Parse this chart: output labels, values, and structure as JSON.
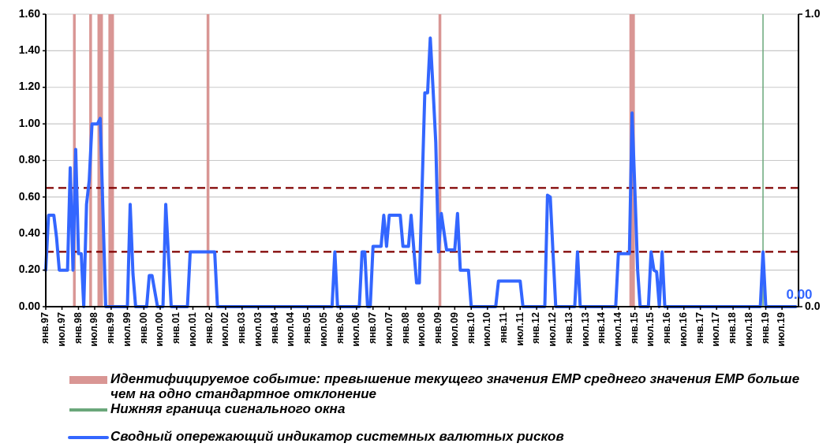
{
  "chart_data": {
    "type": "line",
    "xlim": [
      "1997-01",
      "2020-01"
    ],
    "xticks": [
      {
        "value": "1997-01",
        "label": "янв.97"
      },
      {
        "value": "1997-07",
        "label": "июл.97"
      },
      {
        "value": "1998-01",
        "label": "янв.98"
      },
      {
        "value": "1998-07",
        "label": "июл.98"
      },
      {
        "value": "1999-01",
        "label": "янв.99"
      },
      {
        "value": "1999-07",
        "label": "июл.99"
      },
      {
        "value": "2000-01",
        "label": "янв.00"
      },
      {
        "value": "2000-07",
        "label": "июл.00"
      },
      {
        "value": "2001-01",
        "label": "янв.01"
      },
      {
        "value": "2001-07",
        "label": "июл.01"
      },
      {
        "value": "2002-01",
        "label": "янв.02"
      },
      {
        "value": "2002-07",
        "label": "июл.02"
      },
      {
        "value": "2003-01",
        "label": "янв.03"
      },
      {
        "value": "2003-07",
        "label": "июл.03"
      },
      {
        "value": "2004-01",
        "label": "янв.04"
      },
      {
        "value": "2004-07",
        "label": "июл.04"
      },
      {
        "value": "2005-01",
        "label": "янв.05"
      },
      {
        "value": "2005-07",
        "label": "июл.05"
      },
      {
        "value": "2006-01",
        "label": "янв.06"
      },
      {
        "value": "2006-07",
        "label": "июл.06"
      },
      {
        "value": "2007-01",
        "label": "янв.07"
      },
      {
        "value": "2007-07",
        "label": "июл.07"
      },
      {
        "value": "2008-01",
        "label": "янв.08"
      },
      {
        "value": "2008-07",
        "label": "июл.08"
      },
      {
        "value": "2009-01",
        "label": "янв.09"
      },
      {
        "value": "2009-07",
        "label": "июл.09"
      },
      {
        "value": "2010-01",
        "label": "янв.10"
      },
      {
        "value": "2010-07",
        "label": "июл.10"
      },
      {
        "value": "2011-01",
        "label": "янв.11"
      },
      {
        "value": "2011-07",
        "label": "июл.11"
      },
      {
        "value": "2012-01",
        "label": "янв.12"
      },
      {
        "value": "2012-07",
        "label": "июл.12"
      },
      {
        "value": "2013-01",
        "label": "янв.13"
      },
      {
        "value": "2013-07",
        "label": "июл.13"
      },
      {
        "value": "2014-01",
        "label": "янв.14"
      },
      {
        "value": "2014-07",
        "label": "июл.14"
      },
      {
        "value": "2015-01",
        "label": "янв.15"
      },
      {
        "value": "2015-07",
        "label": "июл.15"
      },
      {
        "value": "2016-01",
        "label": "янв.16"
      },
      {
        "value": "2016-07",
        "label": "июл.16"
      },
      {
        "value": "2017-01",
        "label": "янв.17"
      },
      {
        "value": "2017-07",
        "label": "июл.17"
      },
      {
        "value": "2018-01",
        "label": "янв.18"
      },
      {
        "value": "2018-07",
        "label": "июл.18"
      },
      {
        "value": "2019-01",
        "label": "янв.19"
      },
      {
        "value": "2019-07",
        "label": "июл.19"
      }
    ],
    "ylim": [
      0,
      1.6
    ],
    "yticks": [
      {
        "value": 0,
        "label": "0.00"
      },
      {
        "value": 0.2,
        "label": "0.20"
      },
      {
        "value": 0.4,
        "label": "0.40"
      },
      {
        "value": 0.6,
        "label": "0.60"
      },
      {
        "value": 0.8,
        "label": "0.80"
      },
      {
        "value": 1,
        "label": "1.00"
      },
      {
        "value": 1.2,
        "label": "1.20"
      },
      {
        "value": 1.4,
        "label": "1.40"
      },
      {
        "value": 1.6,
        "label": "1.60"
      }
    ],
    "y2lim": [
      0,
      1
    ],
    "y2ticks": [
      {
        "value": 0,
        "label": "0.0"
      },
      {
        "value": 1,
        "label": "1.0"
      }
    ],
    "grid": "y",
    "legend": "bottom",
    "series": [
      {
        "name": "Сводный опережающий индикатор системных валютных рисков",
        "color": "#3366ff",
        "x": [
          "1997-01",
          "1997-02",
          "1997-04",
          "1997-05",
          "1997-06",
          "1997-09",
          "1997-10",
          "1997-11",
          "1997-12",
          "1998-01",
          "1998-02",
          "1998-03",
          "1998-04",
          "1998-05",
          "1998-06",
          "1998-08",
          "1998-09",
          "1998-11",
          "1999-07",
          "1999-08",
          "1999-09",
          "1999-10",
          "2000-02",
          "2000-03",
          "2000-04",
          "2000-06",
          "2000-08",
          "2000-09",
          "2000-11",
          "2001-05",
          "2001-06",
          "2002-03",
          "2002-04",
          "2005-10",
          "2005-11",
          "2005-12",
          "2006-08",
          "2006-09",
          "2006-10",
          "2006-11",
          "2006-12",
          "2007-01",
          "2007-04",
          "2007-05",
          "2007-06",
          "2007-07",
          "2007-11",
          "2007-12",
          "2008-02",
          "2008-03",
          "2008-04",
          "2008-05",
          "2008-06",
          "2008-08",
          "2008-09",
          "2008-10",
          "2008-11",
          "2008-12",
          "2009-01",
          "2009-02",
          "2009-04",
          "2009-07",
          "2009-08",
          "2009-09",
          "2009-12",
          "2010-01",
          "2010-10",
          "2010-11",
          "2011-07",
          "2011-08",
          "2012-04",
          "2012-05",
          "2012-06",
          "2012-07",
          "2012-08",
          "2013-03",
          "2013-04",
          "2013-05",
          "2014-06",
          "2014-07",
          "2014-11",
          "2014-12",
          "2015-01",
          "2015-02",
          "2015-03",
          "2015-06",
          "2015-07",
          "2015-08",
          "2015-09",
          "2015-10",
          "2015-11",
          "2015-12",
          "2018-10",
          "2018-11",
          "2018-12",
          "2019-01",
          "2019-12"
        ],
        "values": [
          0.2,
          0.5,
          0.5,
          0.38,
          0.2,
          0.2,
          0.76,
          0.2,
          0.86,
          0.29,
          0.29,
          0,
          0.56,
          0.69,
          1.0,
          1.0,
          1.03,
          0,
          0,
          0.56,
          0.18,
          0,
          0,
          0.17,
          0.17,
          0,
          0,
          0.56,
          0,
          0,
          0.3,
          0.3,
          0,
          0,
          0.3,
          0,
          0,
          0.3,
          0.3,
          0,
          0,
          0.33,
          0.33,
          0.5,
          0.33,
          0.5,
          0.5,
          0.33,
          0.33,
          0.5,
          0.31,
          0.13,
          0.13,
          1.17,
          1.17,
          1.47,
          1.19,
          0.9,
          0.3,
          0.51,
          0.31,
          0.31,
          0.51,
          0.2,
          0.2,
          0,
          0,
          0.14,
          0.14,
          0,
          0,
          0.61,
          0.6,
          0.3,
          0,
          0,
          0.3,
          0,
          0,
          0.29,
          0.29,
          1.06,
          0.64,
          0.2,
          0,
          0,
          0.3,
          0.2,
          0.19,
          0,
          0.3,
          0,
          0,
          0,
          0.3,
          0,
          0
        ]
      }
    ],
    "bands": [
      {
        "axis": "x",
        "from": "1997-11",
        "to": "1997-12",
        "color": "#d99694",
        "label": "Идентифицируемое событие: превышение текущего значения EMP среднего значения EMP больше чем на одно стандартное отклонение"
      },
      {
        "axis": "x",
        "from": "1998-05",
        "to": "1998-06",
        "color": "#d99694"
      },
      {
        "axis": "x",
        "from": "1998-08",
        "to": "1998-10",
        "color": "#d99694"
      },
      {
        "axis": "x",
        "from": "1998-12",
        "to": "1999-02",
        "color": "#d99694"
      },
      {
        "axis": "x",
        "from": "2001-12",
        "to": "2002-01",
        "color": "#d99694"
      },
      {
        "axis": "x",
        "from": "2009-01",
        "to": "2009-02",
        "color": "#d99694"
      },
      {
        "axis": "x",
        "from": "2014-11",
        "to": "2015-01",
        "color": "#d99694"
      }
    ],
    "ref_lines": [
      {
        "axis": "y",
        "value": 0.65,
        "color": "#800000",
        "line_style": "dashed"
      },
      {
        "axis": "y",
        "value": 0.3,
        "color": "#800000",
        "line_style": "dashed"
      },
      {
        "axis": "x",
        "value": "2018-12",
        "color": "#6aa77a",
        "label": "Нижняя граница сигнального окна"
      }
    ],
    "annotations": [
      {
        "text": "0.00",
        "x": "2019-12",
        "y": 0
      }
    ]
  }
}
